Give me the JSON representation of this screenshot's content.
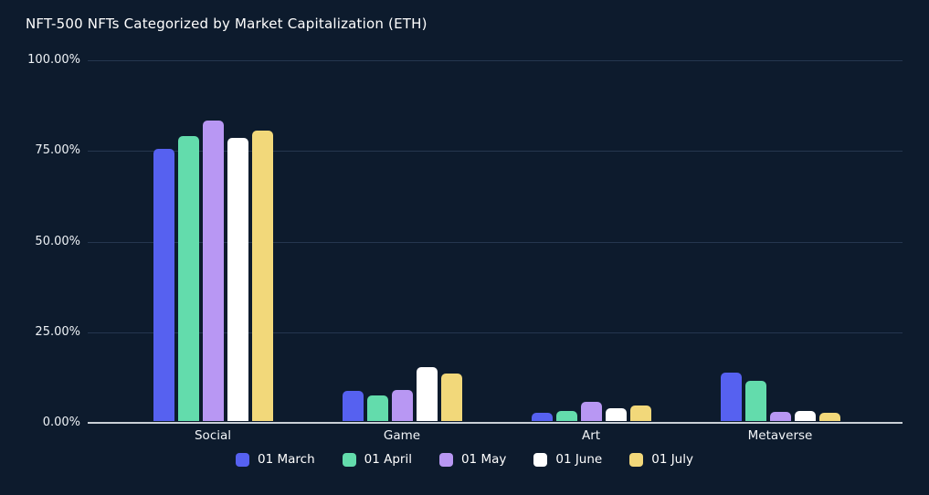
{
  "title": "NFT-500 NFTs Categorized by Market Capitalization (ETH)",
  "colors": {
    "background": "#0D1B2D",
    "gridline": "#25364F",
    "axis_line": "#C9CFD6",
    "text": "#FFFFFF"
  },
  "chart_data": {
    "type": "bar",
    "title": "NFT-500 NFTs Categorized by Market Capitalization (ETH)",
    "categories": [
      "Social",
      "Game",
      "Art",
      "Metaverse"
    ],
    "series": [
      {
        "name": "01 March",
        "color": "#5661F0",
        "values": [
          75.0,
          8.2,
          2.3,
          13.4
        ]
      },
      {
        "name": "01 April",
        "color": "#63DCAC",
        "values": [
          78.5,
          7.1,
          2.7,
          11.1
        ]
      },
      {
        "name": "01 May",
        "color": "#B897F3",
        "values": [
          83.0,
          8.7,
          5.4,
          2.6
        ]
      },
      {
        "name": "01 June",
        "color": "#FFFFFF",
        "values": [
          78.0,
          14.8,
          3.6,
          2.8
        ]
      },
      {
        "name": "01 July",
        "color": "#F2D87A",
        "values": [
          80.0,
          13.2,
          4.2,
          2.4
        ]
      }
    ],
    "y_axis": {
      "unit": "%",
      "min": 0,
      "max": 100,
      "tick_labels_top_to_bottom": [
        "100.00%",
        "75.00%",
        "50.00%",
        "25.00%",
        "0.00%"
      ]
    },
    "xlabel": "",
    "ylabel": "",
    "grid": true,
    "legend_position": "bottom"
  }
}
